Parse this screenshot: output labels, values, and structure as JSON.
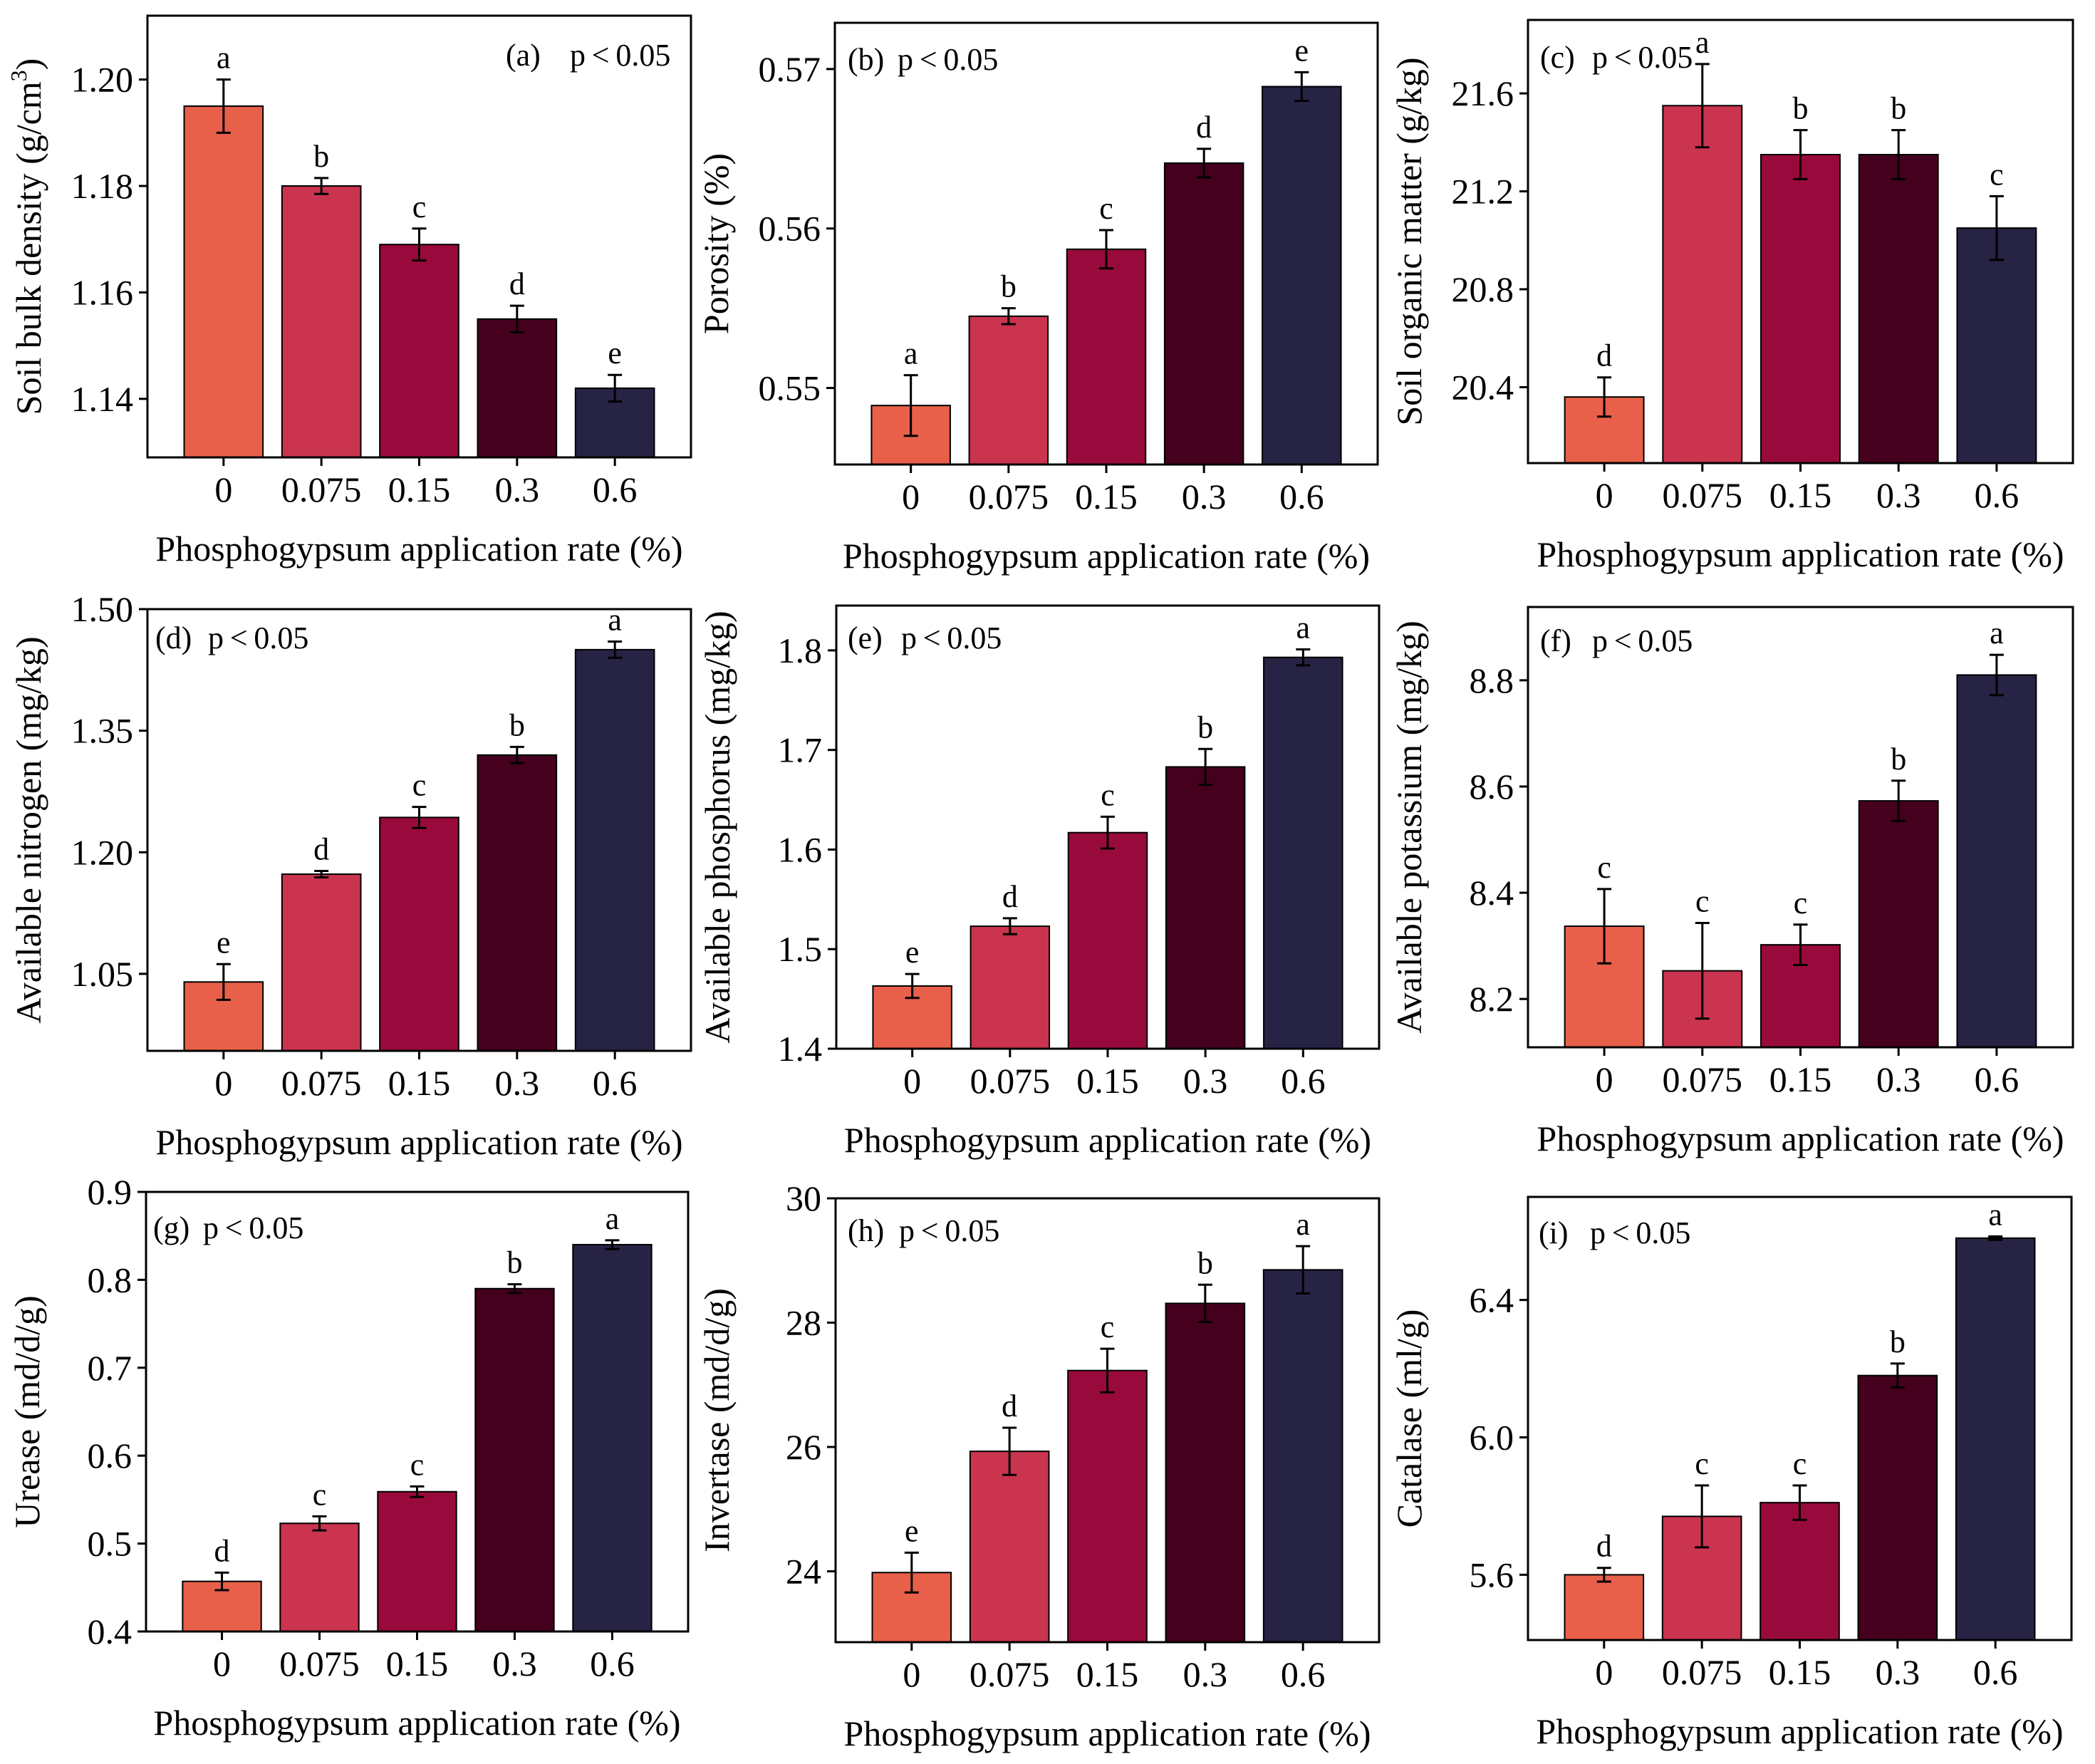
{
  "figure": {
    "x_axis_label": "Phosphogypsum application rate (%)",
    "categories": [
      "0",
      "0.075",
      "0.15",
      "0.3",
      "0.6"
    ],
    "bar_colors": [
      "#e8604a",
      "#ca344e",
      "#990a3c",
      "#45001e",
      "#262344"
    ]
  },
  "chart_data": [
    {
      "id": "a",
      "type": "bar",
      "tag": "(a)",
      "significance": "p<0.05",
      "ylabel": "Soil bulk density (g/cm",
      "ylabel_sup": "3",
      "ylabel_tail": ")",
      "ylim": [
        1.129,
        1.212
      ],
      "yticks": [
        1.14,
        1.16,
        1.18,
        1.2
      ],
      "tick_decimals": 2,
      "values": [
        1.195,
        1.18,
        1.169,
        1.155,
        1.142
      ],
      "errors": [
        0.005,
        0.0015,
        0.003,
        0.0025,
        0.0025
      ],
      "letters": [
        "a",
        "b",
        "c",
        "d",
        "e"
      ]
    },
    {
      "id": "b",
      "type": "bar",
      "tag": "(b)",
      "significance": "p<0.05",
      "ylabel": "Porosity (%)",
      "ylim": [
        0.5452,
        0.5729
      ],
      "yticks": [
        0.55,
        0.56,
        0.57
      ],
      "tick_decimals": 2,
      "values": [
        0.5489,
        0.5545,
        0.5587,
        0.5641,
        0.5689
      ],
      "errors": [
        0.0019,
        0.0005,
        0.0012,
        0.0009,
        0.0009
      ],
      "letters": [
        "a",
        "b",
        "c",
        "d",
        "e"
      ]
    },
    {
      "id": "c",
      "type": "bar",
      "tag": "(c)",
      "significance": "p<0.05",
      "ylabel": "Soil organic matter (g/kg)",
      "ylim": [
        20.09,
        21.9
      ],
      "yticks": [
        20.4,
        20.8,
        21.2,
        21.6
      ],
      "tick_decimals": 1,
      "values": [
        20.36,
        21.55,
        21.35,
        21.35,
        21.05
      ],
      "errors": [
        0.08,
        0.17,
        0.1,
        0.1,
        0.13
      ],
      "letters": [
        "d",
        "a",
        "b",
        "b",
        "c"
      ]
    },
    {
      "id": "d",
      "type": "bar",
      "tag": "(d)",
      "significance": "p<0.05",
      "ylabel": "Available nitrogen (mg/kg)",
      "ylim": [
        0.955,
        1.5
      ],
      "yticks": [
        1.05,
        1.2,
        1.35,
        1.5
      ],
      "tick_decimals": 2,
      "values": [
        1.04,
        1.173,
        1.243,
        1.32,
        1.45
      ],
      "errors": [
        0.022,
        0.004,
        0.013,
        0.01,
        0.01
      ],
      "letters": [
        "e",
        "d",
        "c",
        "b",
        "a"
      ]
    },
    {
      "id": "e",
      "type": "bar",
      "tag": "(e)",
      "significance": "p<0.05",
      "ylabel": "Available phosphorus (mg/kg)",
      "ylim": [
        1.4,
        1.845
      ],
      "yticks": [
        1.4,
        1.5,
        1.6,
        1.7,
        1.8
      ],
      "tick_decimals": 1,
      "values": [
        1.463,
        1.523,
        1.617,
        1.683,
        1.793
      ],
      "errors": [
        0.012,
        0.008,
        0.016,
        0.018,
        0.008
      ],
      "letters": [
        "e",
        "d",
        "c",
        "b",
        "a"
      ]
    },
    {
      "id": "f",
      "type": "bar",
      "tag": "(f)",
      "significance": "p<0.05",
      "ylabel": "Available potassium (mg/kg)",
      "ylim": [
        8.109,
        8.938
      ],
      "yticks": [
        8.2,
        8.4,
        8.6,
        8.8
      ],
      "tick_decimals": 1,
      "values": [
        8.337,
        8.253,
        8.302,
        8.573,
        8.81
      ],
      "errors": [
        0.07,
        0.09,
        0.038,
        0.038,
        0.038
      ],
      "letters": [
        "c",
        "c",
        "c",
        "b",
        "a"
      ]
    },
    {
      "id": "g",
      "type": "bar",
      "tag": "(g)",
      "significance": "p<0.05",
      "ylabel": "Urease (md/d/g)",
      "ylim": [
        0.4,
        0.9
      ],
      "yticks": [
        0.4,
        0.5,
        0.6,
        0.7,
        0.8,
        0.9
      ],
      "tick_decimals": 1,
      "values": [
        0.457,
        0.523,
        0.559,
        0.79,
        0.84
      ],
      "errors": [
        0.01,
        0.008,
        0.006,
        0.005,
        0.005
      ],
      "letters": [
        "d",
        "c",
        "c",
        "b",
        "a"
      ]
    },
    {
      "id": "h",
      "type": "bar",
      "tag": "(h)",
      "significance": "p<0.05",
      "ylabel": "Invertase (md/d/g)",
      "ylim": [
        22.86,
        30
      ],
      "yticks": [
        24,
        26,
        28,
        30
      ],
      "tick_decimals": 0,
      "values": [
        23.98,
        25.93,
        27.23,
        28.31,
        28.85
      ],
      "errors": [
        0.32,
        0.38,
        0.35,
        0.3,
        0.38
      ],
      "letters": [
        "e",
        "d",
        "c",
        "b",
        "a"
      ]
    },
    {
      "id": "i",
      "type": "bar",
      "tag": "(i)",
      "significance": "p<0.05",
      "ylabel": "Catalase (ml/g)",
      "ylim": [
        5.41,
        6.7
      ],
      "yticks": [
        5.6,
        6.0,
        6.4
      ],
      "tick_decimals": 1,
      "values": [
        5.6,
        5.77,
        5.81,
        6.18,
        6.58
      ],
      "errors": [
        0.02,
        0.09,
        0.05,
        0.035,
        0.005
      ],
      "letters": [
        "d",
        "c",
        "c",
        "b",
        "a"
      ]
    }
  ]
}
